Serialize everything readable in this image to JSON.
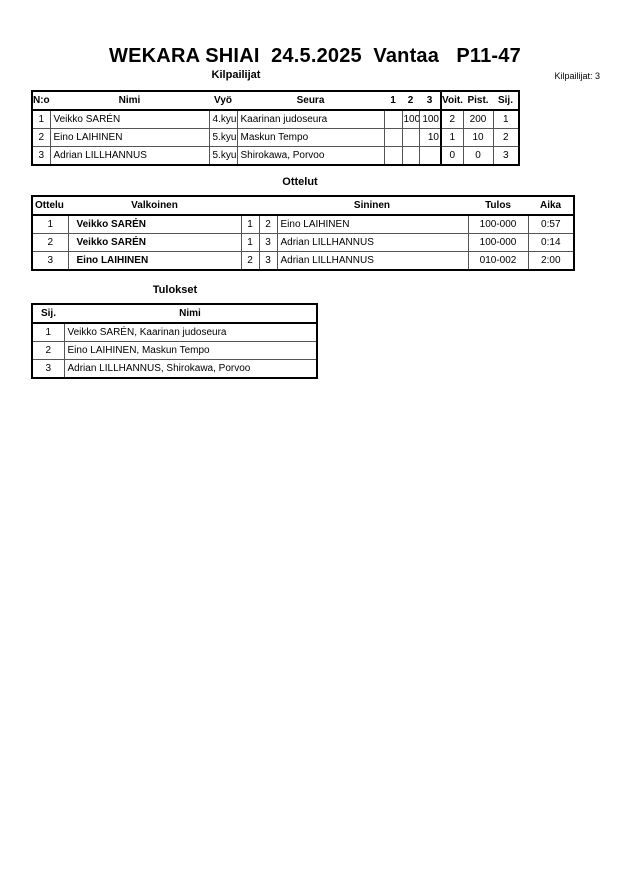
{
  "title": "WEKARA SHIAI  24.5.2025  Vantaa   P11-47",
  "competitors": {
    "heading": "Kilpailijat",
    "count_label": "Kilpailijat: 3",
    "headers": [
      "N:o",
      "Nimi",
      "Vyö",
      "Seura",
      "1",
      "2",
      "3",
      "Voit.",
      "Pist.",
      "Sij."
    ],
    "rows": [
      {
        "no": "1",
        "name": "Veikko SARÉN",
        "belt": "4.kyu",
        "club": "Kaarinan judoseura",
        "r1": "",
        "r2": "100",
        "r3": "100",
        "wins": "2",
        "points": "200",
        "place": "1"
      },
      {
        "no": "2",
        "name": "Eino LAIHINEN",
        "belt": "5.kyu",
        "club": "Maskun Tempo",
        "r1": "",
        "r2": "",
        "r3": "10",
        "wins": "1",
        "points": "10",
        "place": "2"
      },
      {
        "no": "3",
        "name": "Adrian LILLHANNUS",
        "belt": "5.kyu",
        "club": "Shirokawa, Porvoo",
        "r1": "",
        "r2": "",
        "r3": "",
        "wins": "0",
        "points": "0",
        "place": "3"
      }
    ]
  },
  "matches": {
    "heading": "Ottelut",
    "headers": [
      "Ottelu",
      "Valkoinen",
      "Sininen",
      "Tulos",
      "Aika"
    ],
    "rows": [
      {
        "no": "1",
        "white": "Veikko SARÉN",
        "wn": "1",
        "bn": "2",
        "blue": "Eino LAIHINEN",
        "result": "100-000",
        "time": "0:57"
      },
      {
        "no": "2",
        "white": "Veikko SARÉN",
        "wn": "1",
        "bn": "3",
        "blue": "Adrian LILLHANNUS",
        "result": "100-000",
        "time": "0:14"
      },
      {
        "no": "3",
        "white": "Eino LAIHINEN",
        "wn": "2",
        "bn": "3",
        "blue": "Adrian LILLHANNUS",
        "result": "010-002",
        "time": "2:00"
      }
    ]
  },
  "results": {
    "heading": "Tulokset",
    "headers": [
      "Sij.",
      "Nimi"
    ],
    "rows": [
      {
        "place": "1",
        "name": "Veikko SARÉN, Kaarinan judoseura"
      },
      {
        "place": "2",
        "name": "Eino LAIHINEN, Maskun Tempo"
      },
      {
        "place": "3",
        "name": "Adrian LILLHANNUS, Shirokawa, Porvoo"
      }
    ]
  }
}
